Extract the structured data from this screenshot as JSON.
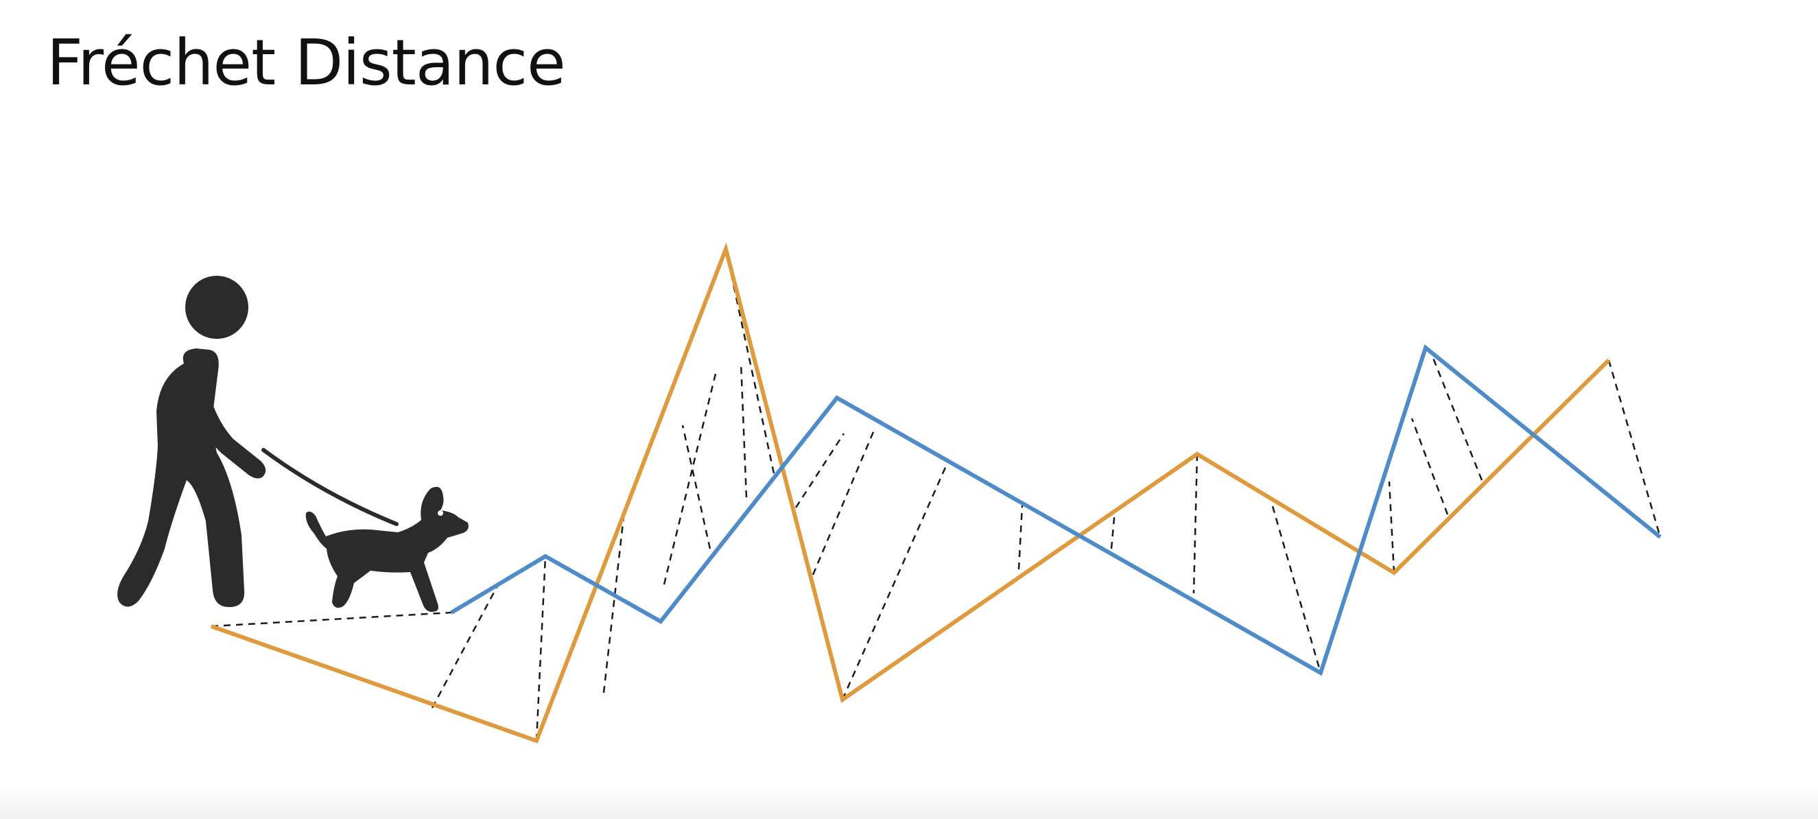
{
  "slide": {
    "title": "Fréchet Distance"
  },
  "colors": {
    "curve_a": "#E09A3E",
    "curve_b": "#4F8BC9",
    "leash": "#1a1a1a",
    "figure": "#2b2b2b"
  },
  "icons": {
    "walker": "person-walking-icon",
    "pet": "dog-icon"
  }
}
